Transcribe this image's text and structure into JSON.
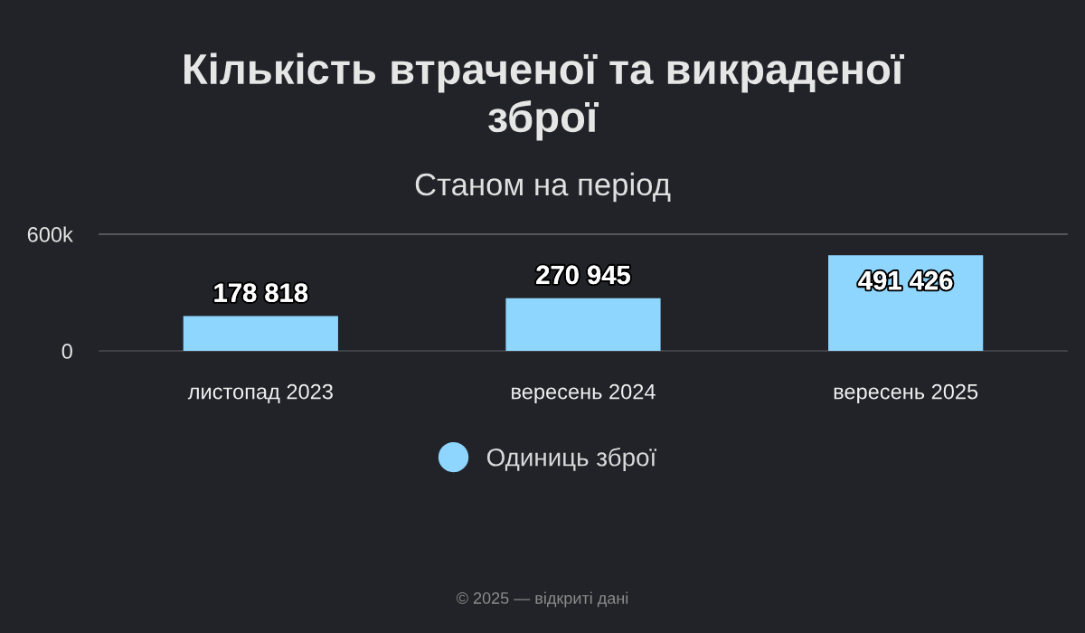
{
  "chart_data": {
    "type": "bar",
    "title": "Кількість втраченої та викраденої зброї",
    "subtitle": "Станом на період",
    "categories": [
      "листопад 2023",
      "вересень 2024",
      "вересень 2025"
    ],
    "series": [
      {
        "name": "Одиниць зброї",
        "color": "#8fd6ff",
        "values": [
          178818,
          270945,
          491426
        ],
        "value_labels": [
          "178 818",
          "270 945",
          "491 426"
        ]
      }
    ],
    "ylim": [
      0,
      600000
    ],
    "yticks": [
      0,
      {
        "value": 600000,
        "label": "600k"
      }
    ],
    "legend": "bottom",
    "annotations": [
      "© 2025 — відкриті дані"
    ]
  }
}
